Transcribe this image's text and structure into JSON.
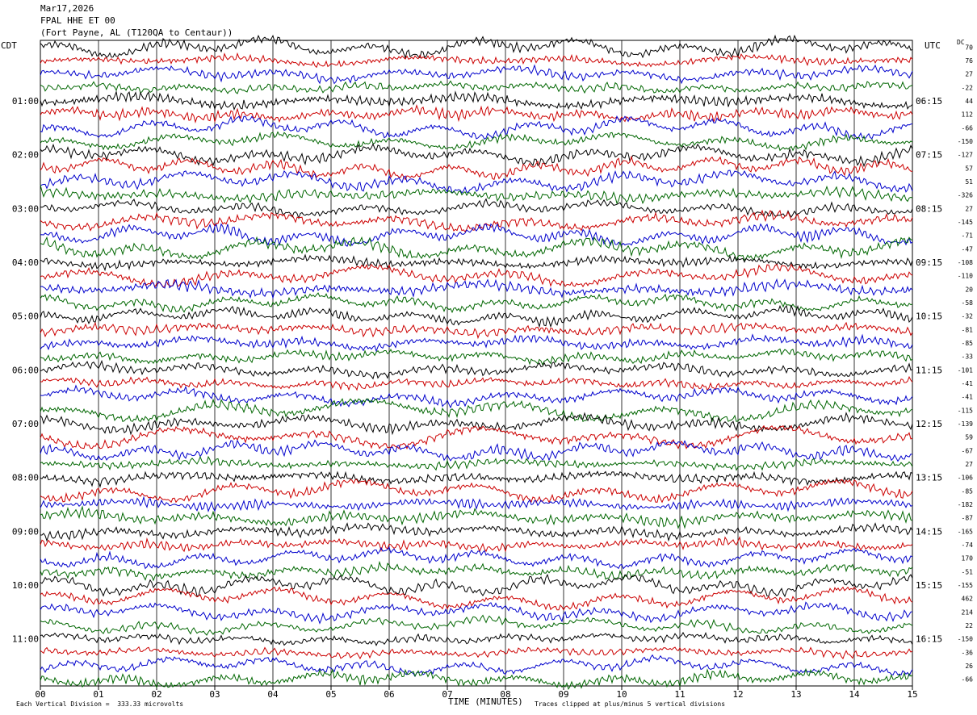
{
  "header": {
    "date": "Mar17,2026",
    "station": "FPAL HHE ET 00",
    "location": "(Fort Payne, AL (T120QA to Centaur))"
  },
  "left_timezone": "CDT",
  "right_timezone": "UTC",
  "dc_label": "DC",
  "footer": {
    "scale_note": "Each Vertical Division =  333.33 microvolts",
    "clip_note": "Traces clipped at plus/minus 5 vertical divisions"
  },
  "colors": {
    "trace_cycle": [
      "#000000",
      "#cc0000",
      "#0000cc",
      "#006600"
    ],
    "grid": "#000000"
  },
  "chart_data": {
    "type": "line",
    "title": "FPAL HHE ET 00",
    "xlabel": "TIME (MINUTES)",
    "x_ticks": [
      "00",
      "01",
      "02",
      "03",
      "04",
      "05",
      "06",
      "07",
      "08",
      "09",
      "10",
      "11",
      "12",
      "13",
      "14",
      "15"
    ],
    "xlim": [
      0,
      15
    ],
    "left_time_labels": [
      "01:00",
      "02:00",
      "03:00",
      "04:00",
      "05:00",
      "06:00",
      "07:00",
      "08:00",
      "09:00",
      "10:00",
      "11:00"
    ],
    "right_time_labels": [
      "06:15",
      "07:15",
      "08:15",
      "09:15",
      "10:15",
      "11:15",
      "12:15",
      "13:15",
      "14:15",
      "15:15",
      "16:15"
    ],
    "dc_offsets": [
      "70",
      "76",
      "27",
      "-22",
      "44",
      "112",
      "-66",
      "-150",
      "-127",
      "57",
      "51",
      "-326",
      "27",
      "-145",
      "-71",
      "-47",
      "-108",
      "-110",
      "20",
      "-58",
      "-32",
      "-81",
      "-85",
      "-33",
      "-101",
      "-41",
      "-41",
      "-115",
      "-139",
      "59",
      "-67",
      "27",
      "-106",
      "-85",
      "-182",
      "-87",
      "-165",
      "-74",
      "170",
      "-51",
      "-155",
      "462",
      "214",
      "22",
      "-150",
      "-36",
      "26",
      "-66"
    ],
    "trace_count": 48,
    "traces_per_hour": 4,
    "minutes_per_trace": 15
  }
}
